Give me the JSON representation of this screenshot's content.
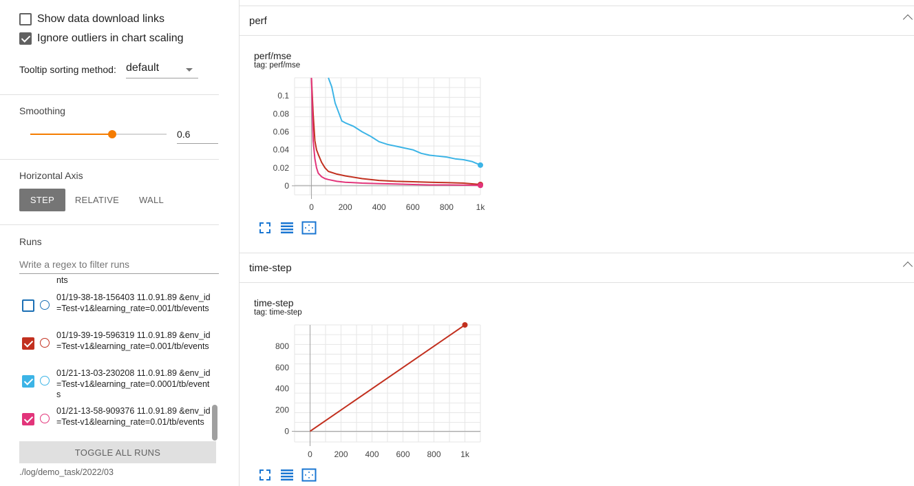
{
  "sidebar": {
    "show_download_links": {
      "label": "Show data download links",
      "checked": false
    },
    "ignore_outliers": {
      "label": "Ignore outliers in chart scaling",
      "checked": true
    },
    "tooltip_sorting": {
      "label": "Tooltip sorting method:",
      "value": "default"
    },
    "smoothing": {
      "title": "Smoothing",
      "value": "0.6",
      "fraction": 0.6
    },
    "horizontal_axis": {
      "title": "Horizontal Axis",
      "options": [
        "STEP",
        "RELATIVE",
        "WALL"
      ],
      "selected": "STEP"
    },
    "runs": {
      "title": "Runs",
      "filter_placeholder": "Write a regex to filter runs",
      "partial_top": "nts",
      "items": [
        {
          "label": "01/19-38-18-156403 11.0.91.89 &env_id=Test-v1&learning_rate=0.001/tb/events",
          "checked": false,
          "color": "#1a6fb5"
        },
        {
          "label": "01/19-39-19-596319 11.0.91.89 &env_id=Test-v1&learning_rate=0.001/tb/events",
          "checked": true,
          "color": "#c2301f"
        },
        {
          "label": "01/21-13-03-230208 11.0.91.89 &env_id=Test-v1&learning_rate=0.0001/tb/events",
          "checked": true,
          "color": "#3cb4e6"
        },
        {
          "label": "01/21-13-58-909376 11.0.91.89 &env_id=Test-v1&learning_rate=0.01/tb/events",
          "checked": true,
          "color": "#e2347a"
        }
      ],
      "toggle_all": "TOGGLE ALL RUNS",
      "log_dir": "./log/demo_task/2022/03"
    }
  },
  "main": {
    "groups": [
      {
        "name": "perf",
        "card": {
          "title": "perf/mse",
          "tag": "tag: perf/mse"
        }
      },
      {
        "name": "time-step",
        "card": {
          "title": "time-step",
          "tag": "tag: time-step"
        }
      }
    ]
  },
  "chart_data": [
    {
      "type": "line",
      "title": "perf/mse",
      "subtitle": "tag: perf/mse",
      "xlim": [
        -100,
        1000
      ],
      "ylim": [
        -0.01,
        0.12
      ],
      "x_ticks": [
        0,
        200,
        400,
        600,
        800,
        1000
      ],
      "x_tick_labels": [
        "0",
        "200",
        "400",
        "600",
        "800",
        "1k"
      ],
      "y_ticks": [
        0,
        0.02,
        0.04,
        0.06,
        0.08,
        0.1
      ],
      "y_tick_labels": [
        "0",
        "0.02",
        "0.04",
        "0.06",
        "0.08",
        "0.1"
      ],
      "grid": true,
      "series": [
        {
          "color": "#3cb4e6",
          "x": [
            100,
            120,
            140,
            160,
            180,
            200,
            250,
            300,
            350,
            400,
            450,
            500,
            550,
            600,
            650,
            700,
            750,
            800,
            850,
            900,
            950,
            1000
          ],
          "y": [
            0.12,
            0.11,
            0.092,
            0.082,
            0.072,
            0.07,
            0.066,
            0.06,
            0.055,
            0.049,
            0.046,
            0.044,
            0.042,
            0.04,
            0.036,
            0.034,
            0.033,
            0.032,
            0.03,
            0.029,
            0.027,
            0.023
          ]
        },
        {
          "color": "#c2301f",
          "x": [
            0,
            10,
            20,
            30,
            40,
            60,
            80,
            100,
            150,
            200,
            300,
            400,
            500,
            600,
            700,
            800,
            900,
            1000
          ],
          "y": [
            0.12,
            0.08,
            0.05,
            0.04,
            0.035,
            0.026,
            0.02,
            0.016,
            0.013,
            0.011,
            0.008,
            0.006,
            0.005,
            0.0045,
            0.004,
            0.0035,
            0.003,
            0.0015
          ]
        },
        {
          "color": "#e2347a",
          "x": [
            0,
            10,
            20,
            30,
            40,
            60,
            80,
            100,
            150,
            200,
            300,
            400,
            500,
            600,
            700,
            800,
            900,
            1000
          ],
          "y": [
            0.12,
            0.05,
            0.03,
            0.02,
            0.014,
            0.01,
            0.008,
            0.007,
            0.005,
            0.004,
            0.003,
            0.0025,
            0.002,
            0.0015,
            0.001,
            0.001,
            0.0008,
            0.0005
          ]
        }
      ]
    },
    {
      "type": "line",
      "title": "time-step",
      "subtitle": "tag: time-step",
      "xlim": [
        -100,
        1100
      ],
      "ylim": [
        -100,
        1000
      ],
      "x_ticks": [
        0,
        200,
        400,
        600,
        800,
        1000
      ],
      "x_tick_labels": [
        "0",
        "200",
        "400",
        "600",
        "800",
        "1k"
      ],
      "y_ticks": [
        0,
        200,
        400,
        600,
        800
      ],
      "y_tick_labels": [
        "0",
        "200",
        "400",
        "600",
        "800"
      ],
      "grid": true,
      "series": [
        {
          "color": "#c2301f",
          "x": [
            0,
            1000
          ],
          "y": [
            0,
            1000
          ]
        }
      ]
    }
  ]
}
